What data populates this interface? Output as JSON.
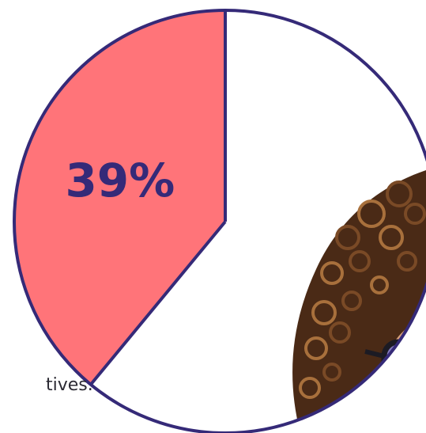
{
  "colors": {
    "slice_fill": "#ff7479",
    "rest_fill": "#ffffff",
    "outline": "#352a78",
    "label": "#352a78",
    "caption": "#2b2a33",
    "hair_dark": "#4a2a16",
    "hair_mid": "#7a4a26",
    "hair_light": "#a8703c",
    "glasses_frame": "#1c1b24",
    "lens_tint": "#6b6fd6",
    "skin": "#d7a07a"
  },
  "photo": {
    "subject": "person-with-curly-hair-and-glasses"
  },
  "caption": {
    "text": "tives."
  },
  "chart_data": {
    "type": "pie",
    "title": "",
    "slices": [
      {
        "label": "39%",
        "value": 39,
        "color": "#ff7479"
      },
      {
        "label": "",
        "value": 61,
        "color": "#ffffff"
      }
    ]
  }
}
